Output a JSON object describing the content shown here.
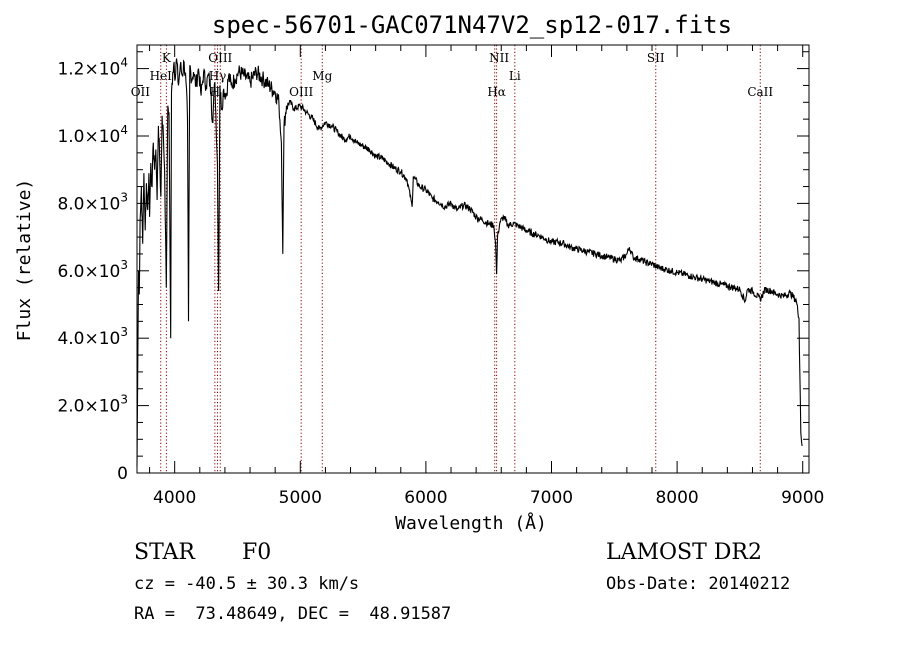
{
  "chart_data": {
    "type": "line",
    "title": "spec-56701-GAC071N47V2_sp12-017.fits",
    "xlabel": "Wavelength (Å)",
    "ylabel": "Flux (relative)",
    "xlim": [
      3700,
      9050
    ],
    "ylim": [
      0,
      12700
    ],
    "x_ticks": [
      4000,
      5000,
      6000,
      7000,
      8000,
      9000
    ],
    "y_ticks": [
      {
        "value": 0,
        "mantissa": "0",
        "exp": ""
      },
      {
        "value": 2000,
        "mantissa": "2.0×10",
        "exp": "3"
      },
      {
        "value": 4000,
        "mantissa": "4.0×10",
        "exp": "3"
      },
      {
        "value": 6000,
        "mantissa": "6.0×10",
        "exp": "3"
      },
      {
        "value": 8000,
        "mantissa": "8.0×10",
        "exp": "3"
      },
      {
        "value": 10000,
        "mantissa": "1.0×10",
        "exp": "4"
      },
      {
        "value": 12000,
        "mantissa": "1.2×10",
        "exp": "4"
      }
    ],
    "series": [
      {
        "x": [
          3700,
          3712,
          3718,
          3725,
          3735,
          3745,
          3755,
          3765,
          3775,
          3785,
          3795,
          3800,
          3810,
          3820,
          3830,
          3840,
          3850,
          3860,
          3870,
          3880,
          3890,
          3900,
          3910,
          3920,
          3933,
          3945,
          3955,
          3968,
          3975,
          3985,
          3995,
          4005,
          4015,
          4030,
          4045,
          4060,
          4075,
          4090,
          4102,
          4110,
          4120,
          4135,
          4150,
          4170,
          4190,
          4210,
          4230,
          4250,
          4270,
          4290,
          4300,
          4320,
          4340,
          4350,
          4360,
          4375,
          4390,
          4410,
          4430,
          4450,
          4480,
          4510,
          4550,
          4600,
          4650,
          4700,
          4750,
          4800,
          4830,
          4850,
          4861,
          4870,
          4890,
          4920,
          4950,
          5000,
          5050,
          5100,
          5150,
          5200,
          5250,
          5300,
          5350,
          5400,
          5450,
          5500,
          5550,
          5600,
          5650,
          5700,
          5750,
          5800,
          5850,
          5890,
          5900,
          5950,
          6000,
          6050,
          6100,
          6150,
          6200,
          6250,
          6300,
          6350,
          6400,
          6450,
          6500,
          6540,
          6555,
          6563,
          6570,
          6590,
          6620,
          6650,
          6700,
          6750,
          6800,
          6850,
          6900,
          6950,
          7000,
          7050,
          7100,
          7150,
          7200,
          7250,
          7300,
          7350,
          7400,
          7450,
          7500,
          7550,
          7600,
          7620,
          7650,
          7700,
          7750,
          7800,
          7850,
          7900,
          7950,
          8000,
          8050,
          8100,
          8150,
          8200,
          8250,
          8300,
          8350,
          8400,
          8450,
          8500,
          8542,
          8560,
          8600,
          8662,
          8700,
          8750,
          8800,
          8850,
          8900,
          8950,
          8970,
          8985,
          8995
        ],
        "y": [
          200,
          6000,
          5300,
          7500,
          8500,
          6800,
          8900,
          7200,
          8600,
          7800,
          8900,
          7600,
          9200,
          8500,
          9800,
          9000,
          9600,
          8100,
          10300,
          9400,
          8200,
          10600,
          10000,
          9000,
          5500,
          10900,
          10700,
          4000,
          11300,
          11900,
          12200,
          11700,
          12300,
          11500,
          12100,
          11800,
          12200,
          11600,
          10500,
          4500,
          12100,
          11700,
          11900,
          11500,
          12000,
          11200,
          11900,
          11500,
          11800,
          11300,
          10400,
          11600,
          9200,
          5400,
          11500,
          10800,
          11400,
          11200,
          11800,
          11500,
          11700,
          11900,
          11800,
          11600,
          11900,
          11700,
          11500,
          11300,
          11000,
          9800,
          6500,
          10300,
          10900,
          11000,
          10800,
          10900,
          10700,
          10500,
          10200,
          10400,
          10300,
          10100,
          9900,
          10000,
          9800,
          9700,
          9600,
          9400,
          9350,
          9200,
          9050,
          8950,
          8700,
          7900,
          8800,
          8500,
          8400,
          8150,
          8050,
          7900,
          8000,
          7800,
          7950,
          7850,
          7600,
          7500,
          7400,
          7350,
          6800,
          5900,
          7000,
          7450,
          7600,
          7350,
          7400,
          7300,
          7200,
          7100,
          7050,
          6950,
          6850,
          6850,
          6800,
          6700,
          6650,
          6600,
          6550,
          6500,
          6450,
          6400,
          6350,
          6300,
          6500,
          6700,
          6400,
          6350,
          6250,
          6200,
          6100,
          6050,
          6000,
          5950,
          5900,
          5850,
          5800,
          5750,
          5700,
          5650,
          5600,
          5550,
          5500,
          5450,
          5100,
          5450,
          5400,
          5150,
          5450,
          5400,
          5300,
          5250,
          5350,
          5100,
          4600,
          1200,
          800
        ]
      }
    ],
    "lines": [
      {
        "label": "OII",
        "x": 3727,
        "row": 3
      },
      {
        "label": "HeI",
        "x": 3889,
        "row": 2
      },
      {
        "label": "K",
        "x": 3934,
        "row": 1
      },
      {
        "label": "OIII",
        "x": 4363,
        "row": 1
      },
      {
        "label": "Hγ",
        "x": 4341,
        "row": 2
      },
      {
        "label": "H",
        "x": 4320,
        "row": 3
      },
      {
        "label": "OIII",
        "x": 5007,
        "row": 3
      },
      {
        "label": "Mg",
        "x": 5175,
        "row": 2
      },
      {
        "label": "NII",
        "x": 6583,
        "row": 1
      },
      {
        "label": "Li",
        "x": 6708,
        "row": 2
      },
      {
        "label": "Hα",
        "x": 6563,
        "row": 3
      },
      {
        "label": "SII",
        "x": 7830,
        "row": 1
      },
      {
        "label": "CaII",
        "x": 8662,
        "row": 3
      }
    ],
    "line_positions": [
      3889,
      3934,
      4320,
      4341,
      4363,
      5007,
      5175,
      6548,
      6563,
      6708,
      7830,
      8662
    ],
    "grid": false,
    "legend": "none",
    "colors": {
      "spectrum": "#000000",
      "lines": "#8b0000"
    }
  },
  "info": {
    "class": "STAR",
    "subclass": "F0",
    "survey": "LAMOST DR2",
    "cz": "cz = -40.5 ± 30.3 km/s",
    "obsdate": "Obs-Date: 20140212",
    "radec": "RA =  73.48649, DEC =  48.91587"
  }
}
